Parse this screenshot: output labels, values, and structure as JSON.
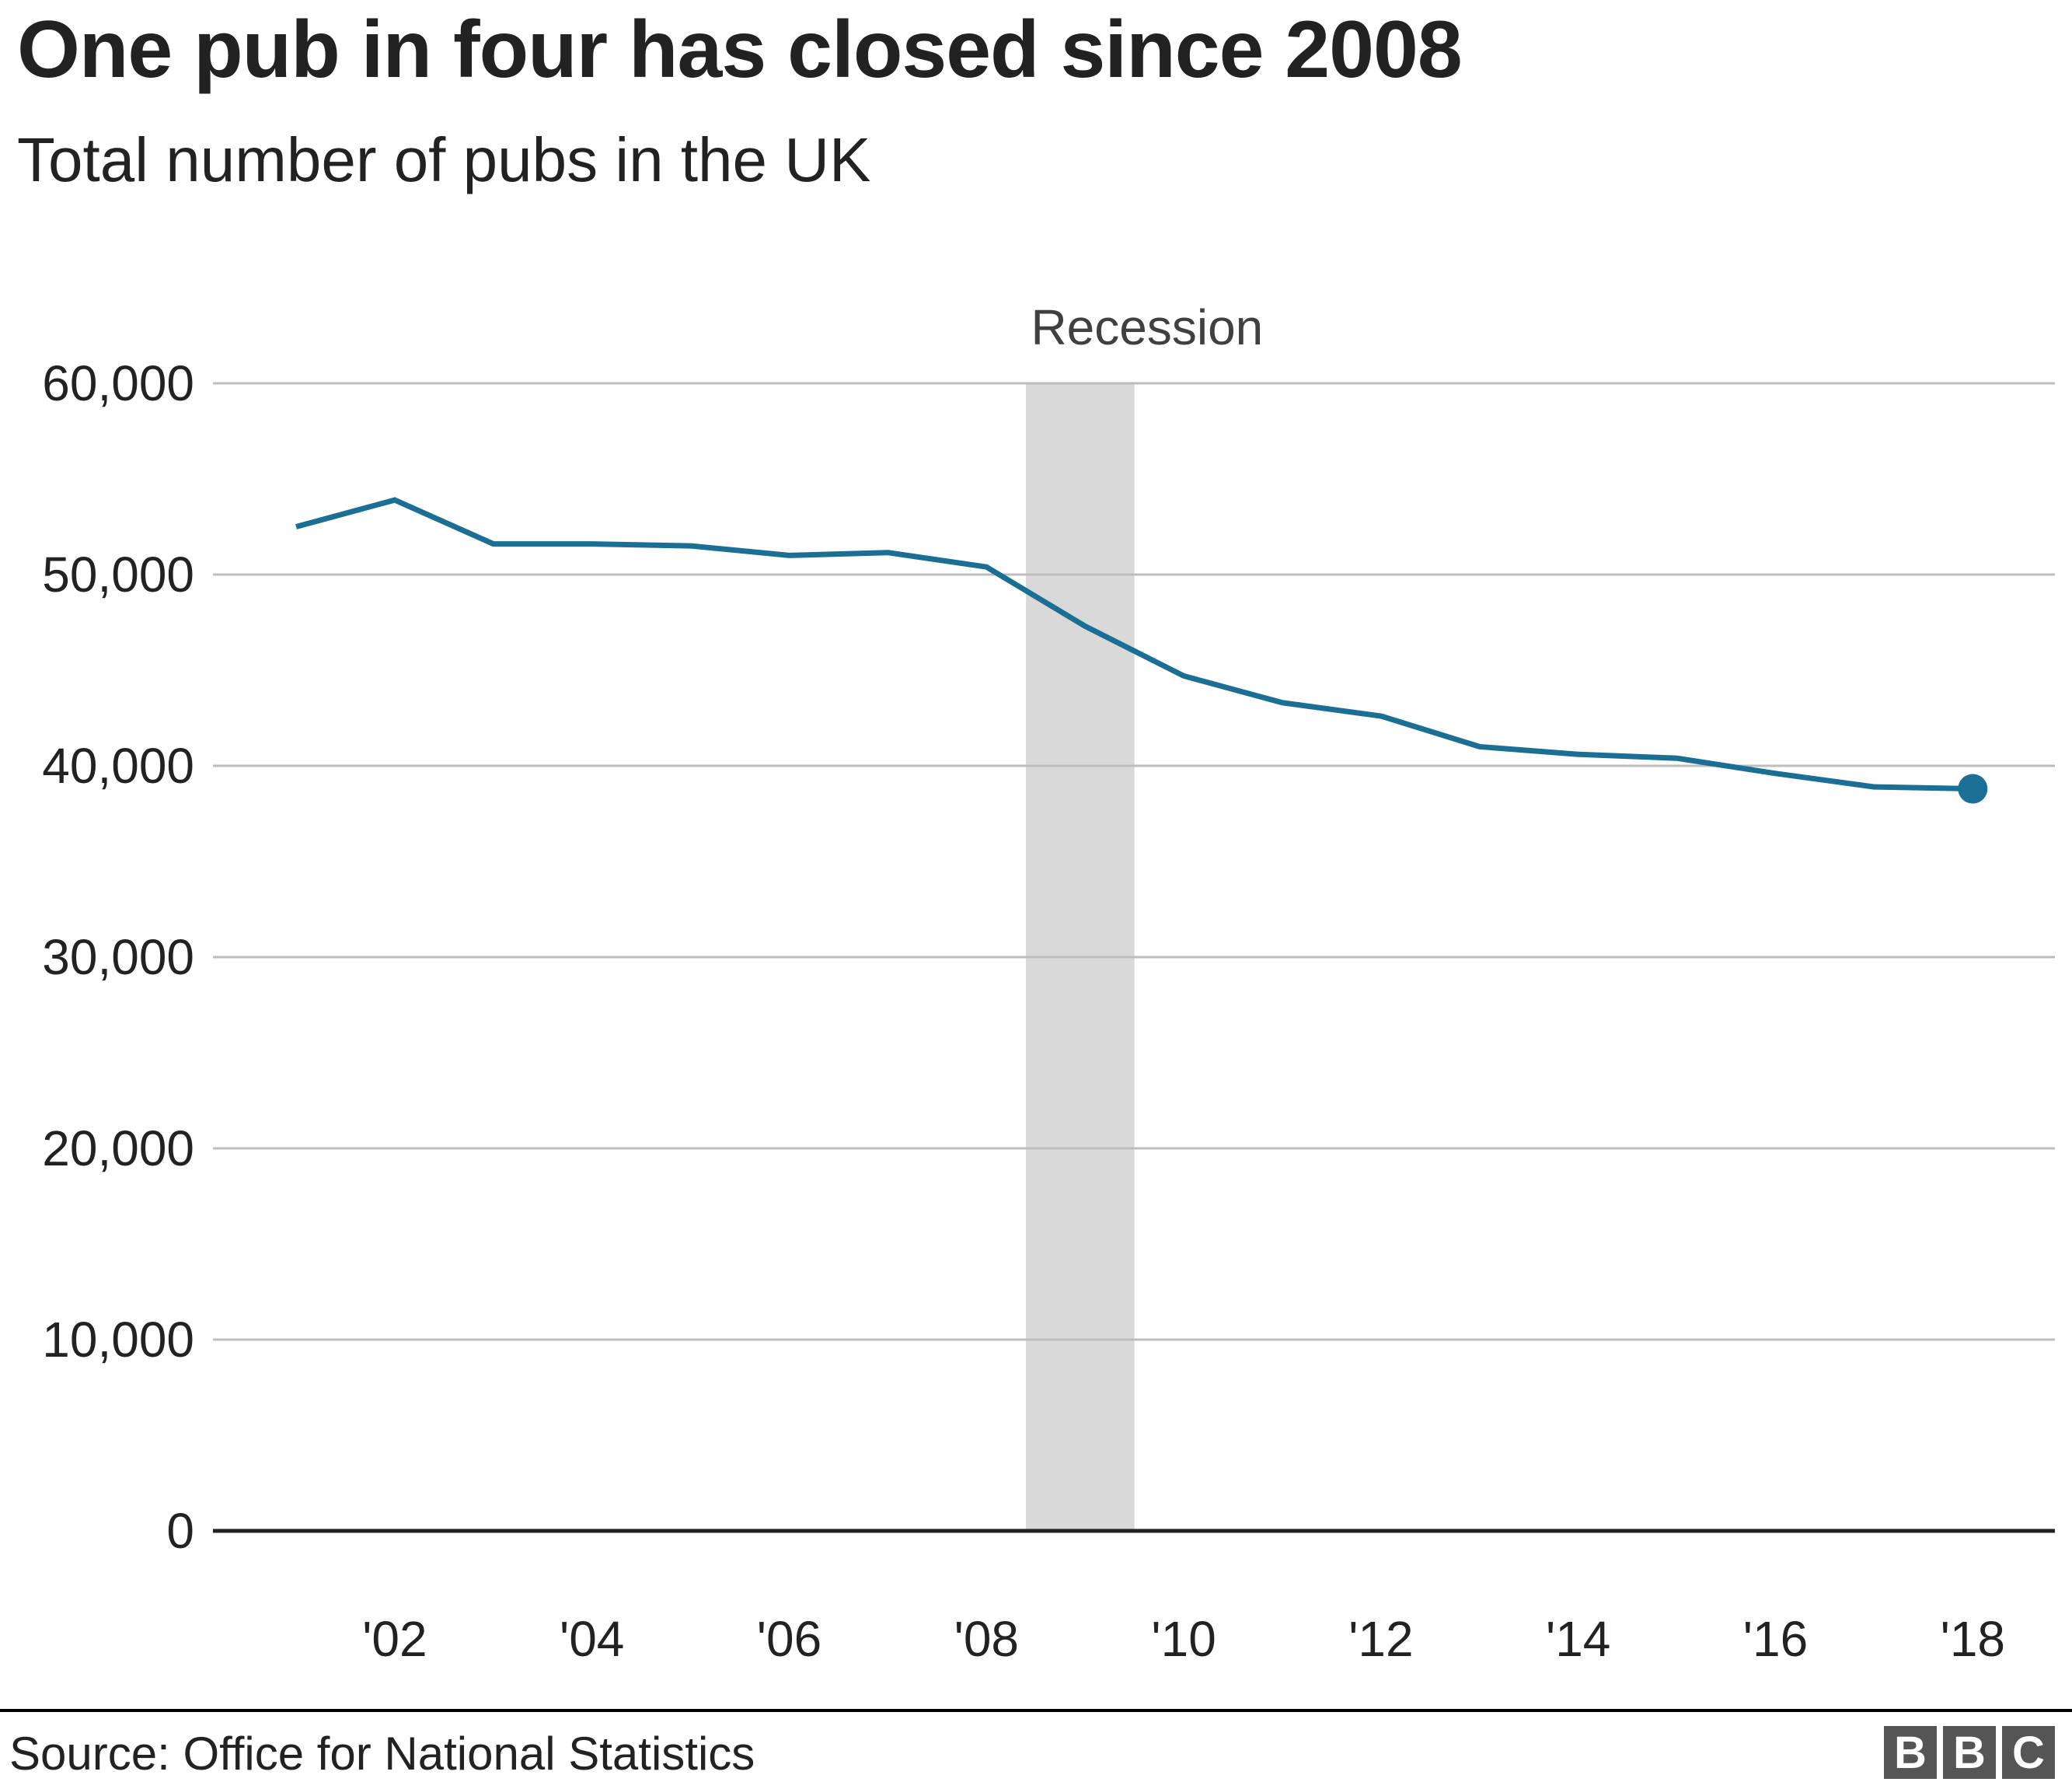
{
  "header": {
    "title": "One pub in four has closed since 2008",
    "subtitle": "Total number of pubs in the UK"
  },
  "footer": {
    "source": "Source: Office for National Statistics",
    "logo": [
      "B",
      "B",
      "C"
    ]
  },
  "colors": {
    "line": "#1b6f94",
    "gridline": "#bdbdbd",
    "zero_line": "#222222",
    "recession_band": "#d9d9d9",
    "annotation_text": "#404040"
  },
  "chart_data": {
    "type": "line",
    "title": "One pub in four has closed since 2008",
    "subtitle": "Total number of pubs in the UK",
    "xlabel": "",
    "ylabel": "",
    "x": [
      2001,
      2002,
      2003,
      2004,
      2005,
      2006,
      2007,
      2008,
      2009,
      2010,
      2011,
      2012,
      2013,
      2014,
      2015,
      2016,
      2017,
      2018
    ],
    "series": [
      {
        "name": "Total number of pubs in the UK",
        "values": [
          52500,
          53900,
          51600,
          51600,
          51500,
          51000,
          51150,
          50400,
          47300,
          44700,
          43300,
          42600,
          41000,
          40600,
          40400,
          39600,
          38900,
          38800
        ]
      }
    ],
    "ylim": [
      0,
      60000
    ],
    "yticks": [
      0,
      10000,
      20000,
      30000,
      40000,
      50000,
      60000
    ],
    "ytick_labels": [
      "0",
      "10,000",
      "20,000",
      "30,000",
      "40,000",
      "50,000",
      "60,000"
    ],
    "xticks": [
      2002,
      2004,
      2006,
      2008,
      2010,
      2012,
      2014,
      2016,
      2018
    ],
    "xtick_labels": [
      "'02",
      "'04",
      "'06",
      "'08",
      "'10",
      "'12",
      "'14",
      "'16",
      "'18"
    ],
    "annotations": [
      {
        "type": "shaded_band",
        "label": "Recession",
        "x_start": 2008.4,
        "x_end": 2009.5
      },
      {
        "type": "end_marker",
        "x": 2018,
        "value": 38800
      }
    ],
    "grid": true,
    "legend": null,
    "source": "Source: Office for National Statistics"
  }
}
